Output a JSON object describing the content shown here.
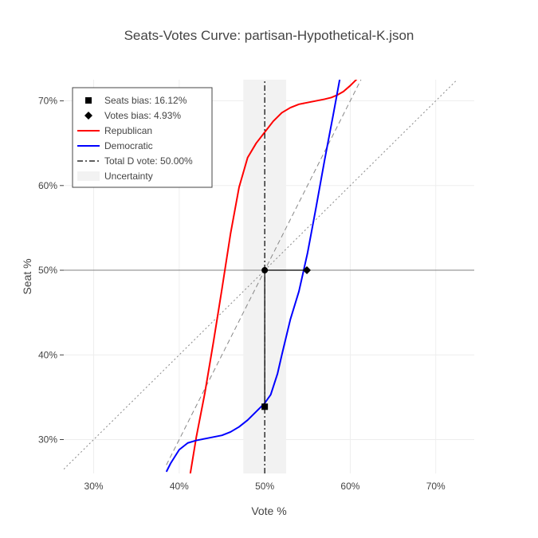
{
  "chart_data": {
    "type": "line",
    "title": "Seats-Votes Curve: partisan-Hypothetical-K.json",
    "xlabel": "Vote %",
    "ylabel": "Seat %",
    "xlim": [
      26.5,
      74.5
    ],
    "ylim": [
      26.0,
      72.5
    ],
    "x_ticks": [
      30,
      40,
      50,
      60,
      70
    ],
    "y_ticks": [
      30,
      40,
      50,
      60,
      70
    ],
    "x_tick_labels": [
      "30%",
      "40%",
      "50%",
      "60%",
      "70%"
    ],
    "y_tick_labels": [
      "30%",
      "40%",
      "50%",
      "60%",
      "70%"
    ],
    "grid": true,
    "legend_position": "top-left",
    "uncertainty_band": {
      "x_range": [
        47.5,
        52.5
      ],
      "color": "#f2f2f2"
    },
    "horizontal_line": {
      "y": 50,
      "color": "#808080"
    },
    "series": [
      {
        "name": "Republican",
        "color": "#ff0000",
        "style": "solid",
        "x": [
          41.3,
          42.0,
          43.0,
          44.0,
          45.0,
          46.0,
          47.0,
          48.0,
          49.0,
          50.0,
          51.0,
          52.0,
          53.0,
          54.0,
          55.0,
          56.0,
          57.0,
          57.8,
          58.5,
          59.2,
          60.0,
          60.6,
          61.2
        ],
        "y": [
          26.0,
          30.3,
          35.5,
          41.5,
          47.8,
          54.3,
          59.8,
          63.3,
          65.0,
          66.3,
          67.6,
          68.6,
          69.2,
          69.6,
          69.8,
          70.0,
          70.2,
          70.4,
          70.7,
          71.1,
          71.8,
          72.4,
          73.0
        ]
      },
      {
        "name": "Democratic",
        "color": "#0000ff",
        "style": "solid",
        "x": [
          38.5,
          39.0,
          40.0,
          41.0,
          42.0,
          43.0,
          44.0,
          45.0,
          46.0,
          47.0,
          48.0,
          49.0,
          50.0,
          50.7,
          51.5,
          52.0,
          53.0,
          54.0,
          55.0,
          56.0,
          57.0,
          58.0,
          58.8
        ],
        "y": [
          26.2,
          27.2,
          28.8,
          29.6,
          29.9,
          30.1,
          30.3,
          30.5,
          30.9,
          31.5,
          32.3,
          33.3,
          34.3,
          35.3,
          37.8,
          40.0,
          44.2,
          47.5,
          52.0,
          57.4,
          63.0,
          68.3,
          72.7
        ]
      },
      {
        "name": "Total D vote: 50.00%",
        "color": "#000000",
        "style": "dashdot",
        "x": [
          50.0,
          50.0
        ],
        "y": [
          26.0,
          72.5
        ]
      },
      {
        "name": "Uncertainty",
        "color": "#f2f2f2",
        "style": "band",
        "x": [
          47.5,
          52.5
        ],
        "y": [
          26.0,
          72.5
        ]
      }
    ],
    "reference_lines": [
      {
        "style": "dashed",
        "color": "#888888",
        "x": [
          38.5,
          61.5
        ],
        "y": [
          27.0,
          73.0
        ]
      },
      {
        "style": "dotted",
        "color": "#888888",
        "x": [
          26.5,
          72.5
        ],
        "y": [
          26.5,
          72.5
        ]
      }
    ],
    "markers": [
      {
        "name": "Seats bias: 16.12%",
        "shape": "square",
        "color": "#000000",
        "x": 50.0,
        "y": 33.88
      },
      {
        "name": "Votes bias: 4.93%",
        "shape": "diamond",
        "color": "#000000",
        "x": 54.93,
        "y": 50.0
      },
      {
        "shape": "circle",
        "color": "#000000",
        "x": 50.0,
        "y": 50.0
      }
    ],
    "connector_lines": [
      {
        "color": "#000000",
        "x": [
          50.0,
          50.0
        ],
        "y": [
          50.0,
          33.88
        ]
      },
      {
        "color": "#000000",
        "x": [
          50.0,
          54.93
        ],
        "y": [
          50.0,
          50.0
        ]
      }
    ],
    "legend": [
      {
        "label": "Seats bias: 16.12%",
        "symbol": "square",
        "color": "#000000"
      },
      {
        "label": "Votes bias: 4.93%",
        "symbol": "diamond",
        "color": "#000000"
      },
      {
        "label": "Republican",
        "symbol": "line",
        "color": "#ff0000"
      },
      {
        "label": "Democratic",
        "symbol": "line",
        "color": "#0000ff"
      },
      {
        "label": "Total D vote: 50.00%",
        "symbol": "dashdot",
        "color": "#000000"
      },
      {
        "label": "Uncertainty",
        "symbol": "band",
        "color": "#f2f2f2"
      }
    ]
  }
}
